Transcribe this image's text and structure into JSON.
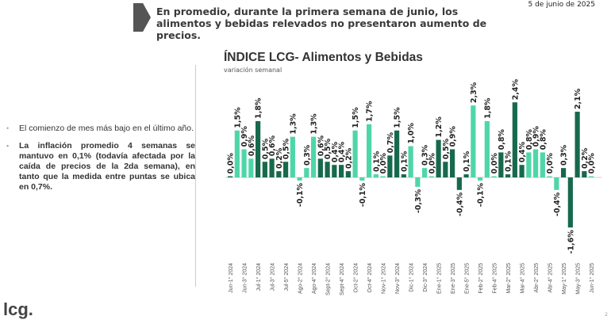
{
  "header": {
    "headline": "En promedio, durante la primera semana de junio, los alimentos y bebidas relevados no presentaron aumento de precios.",
    "date": "5 de junio de 2025"
  },
  "bullets": [
    {
      "text": "El comienzo de mes más bajo en el último año.",
      "bold": false
    },
    {
      "text": "La inflación promedio 4 semanas se mantuvo en 0,1% (todavía afectada por la caída de precios de la 2da semana), en tanto que la medida entre puntas se ubica en 0,7%.",
      "bold": true
    }
  ],
  "logo": "lcg.",
  "page_number": "2",
  "chart_data": {
    "type": "bar",
    "title": "ÍNDICE LCG- Alimentos y Bebidas",
    "subtitle": "variación semanal",
    "colors": {
      "light": "#4fd6a8",
      "dark": "#17694c"
    },
    "tick_labels": [
      "Jun-1° 2024",
      "Jun-3° 2024",
      "Jul-1° 2024",
      "Jul-3° 2024",
      "Jul-5° 2024",
      "Ago-2° 2024",
      "Ago-4° 2024",
      "Sept-2° 2024",
      "Sept-4° 2024",
      "Oct-2° 2024",
      "Oct-4° 2024",
      "Nov-1° 2024",
      "Nov-3° 2024",
      "Dic-1° 2024",
      "Dic-3° 2024",
      "Ene-1° 2025",
      "Ene-3° 2025",
      "Ene-5° 2025",
      "Feb-2° 2025",
      "Feb-4° 2025",
      "Mar-2° 2025",
      "Mar-4° 2025",
      "Abr-2° 2025",
      "Abr-4° 2025",
      "May-1° 2025",
      "May-3° 2025",
      "Jun-1° 2025"
    ],
    "values": [
      0.0,
      1.5,
      0.9,
      0.6,
      1.8,
      0.5,
      0.6,
      0.2,
      0.5,
      1.3,
      -0.1,
      0.3,
      1.3,
      0.6,
      0.5,
      0.4,
      0.4,
      0.2,
      1.5,
      -0.1,
      1.7,
      0.1,
      0.0,
      0.7,
      1.5,
      0.1,
      1.0,
      -0.3,
      0.3,
      0.0,
      1.2,
      0.5,
      0.9,
      -0.4,
      0.1,
      2.3,
      -0.1,
      1.8,
      0.0,
      0.8,
      0.1,
      2.4,
      0.4,
      0.8,
      0.9,
      0.8,
      0.0,
      -0.4,
      0.3,
      -1.6,
      2.1,
      0.2,
      0.0
    ],
    "shade": [
      "d",
      "l",
      "l",
      "l",
      "d",
      "d",
      "d",
      "d",
      "d",
      "l",
      "l",
      "l",
      "l",
      "d",
      "d",
      "d",
      "d",
      "d",
      "l",
      "l",
      "l",
      "l",
      "l",
      "d",
      "d",
      "d",
      "l",
      "l",
      "l",
      "l",
      "d",
      "d",
      "d",
      "d",
      "d",
      "l",
      "l",
      "l",
      "l",
      "d",
      "d",
      "d",
      "d",
      "l",
      "l",
      "l",
      "l",
      "l",
      "d",
      "d",
      "d",
      "d",
      "l"
    ],
    "ylim": [
      -1.6,
      2.4
    ],
    "grid": false
  }
}
